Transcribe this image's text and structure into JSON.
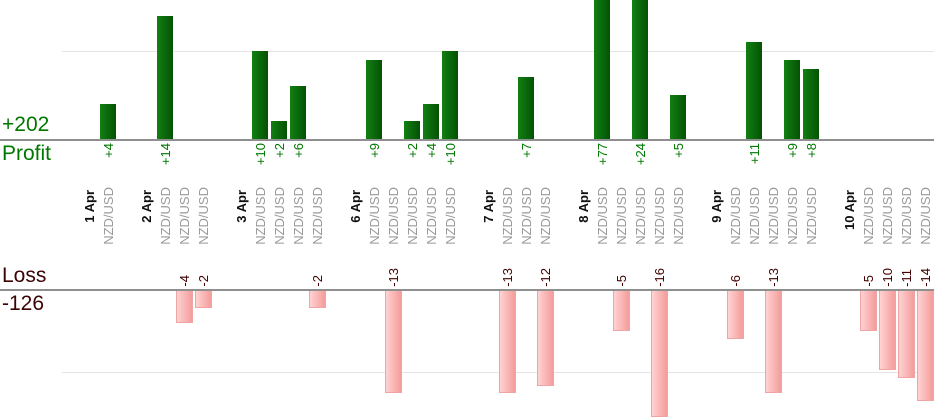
{
  "left_labels": {
    "profit_total": "+202",
    "profit_label": "Profit",
    "loss_label": "Loss",
    "loss_total": "-126"
  },
  "colors": {
    "profit_text": "#007800",
    "loss_text": "#420000",
    "date_text": "#111111",
    "symbol_text": "#9a9a9a",
    "profit_bar_gradient": [
      "#128012",
      "#045204"
    ],
    "loss_bar_gradient": [
      "#ffd2d2",
      "#f49c9c"
    ],
    "baseline": "#8f8f8f",
    "gridline": "#e4e4e4"
  },
  "chart_data": {
    "type": "bar",
    "title": "",
    "xlabel": "",
    "ylabel": "",
    "legend": "none",
    "grid": "horizontal gridlines at +10 (profit pane) and -10 (loss pane)",
    "layout": "two stacked panes: profit bars grow up from upper axis, loss bars grow down from lower axis; one column per trade, grouped by date; +77 and +24 bars are clipped by the top edge of the image",
    "symbol": "NZD/USD",
    "gridline_step": 10,
    "profit_total": 202,
    "loss_total": -126,
    "days": [
      {
        "date": "1 Apr",
        "trades": [
          4
        ]
      },
      {
        "date": "2 Apr",
        "trades": [
          14,
          -4,
          -2
        ]
      },
      {
        "date": "3 Apr",
        "trades": [
          10,
          2,
          6,
          -2
        ]
      },
      {
        "date": "6 Apr",
        "trades": [
          9,
          -13,
          2,
          4,
          10
        ]
      },
      {
        "date": "7 Apr",
        "trades": [
          -13,
          7,
          -12
        ]
      },
      {
        "date": "8 Apr",
        "trades": [
          77,
          -5,
          24,
          -16,
          5
        ]
      },
      {
        "date": "9 Apr",
        "trades": [
          -6,
          11,
          -13,
          9,
          8
        ]
      },
      {
        "date": "10 Apr",
        "trades": [
          -5,
          -10,
          -11,
          -14
        ]
      }
    ]
  }
}
